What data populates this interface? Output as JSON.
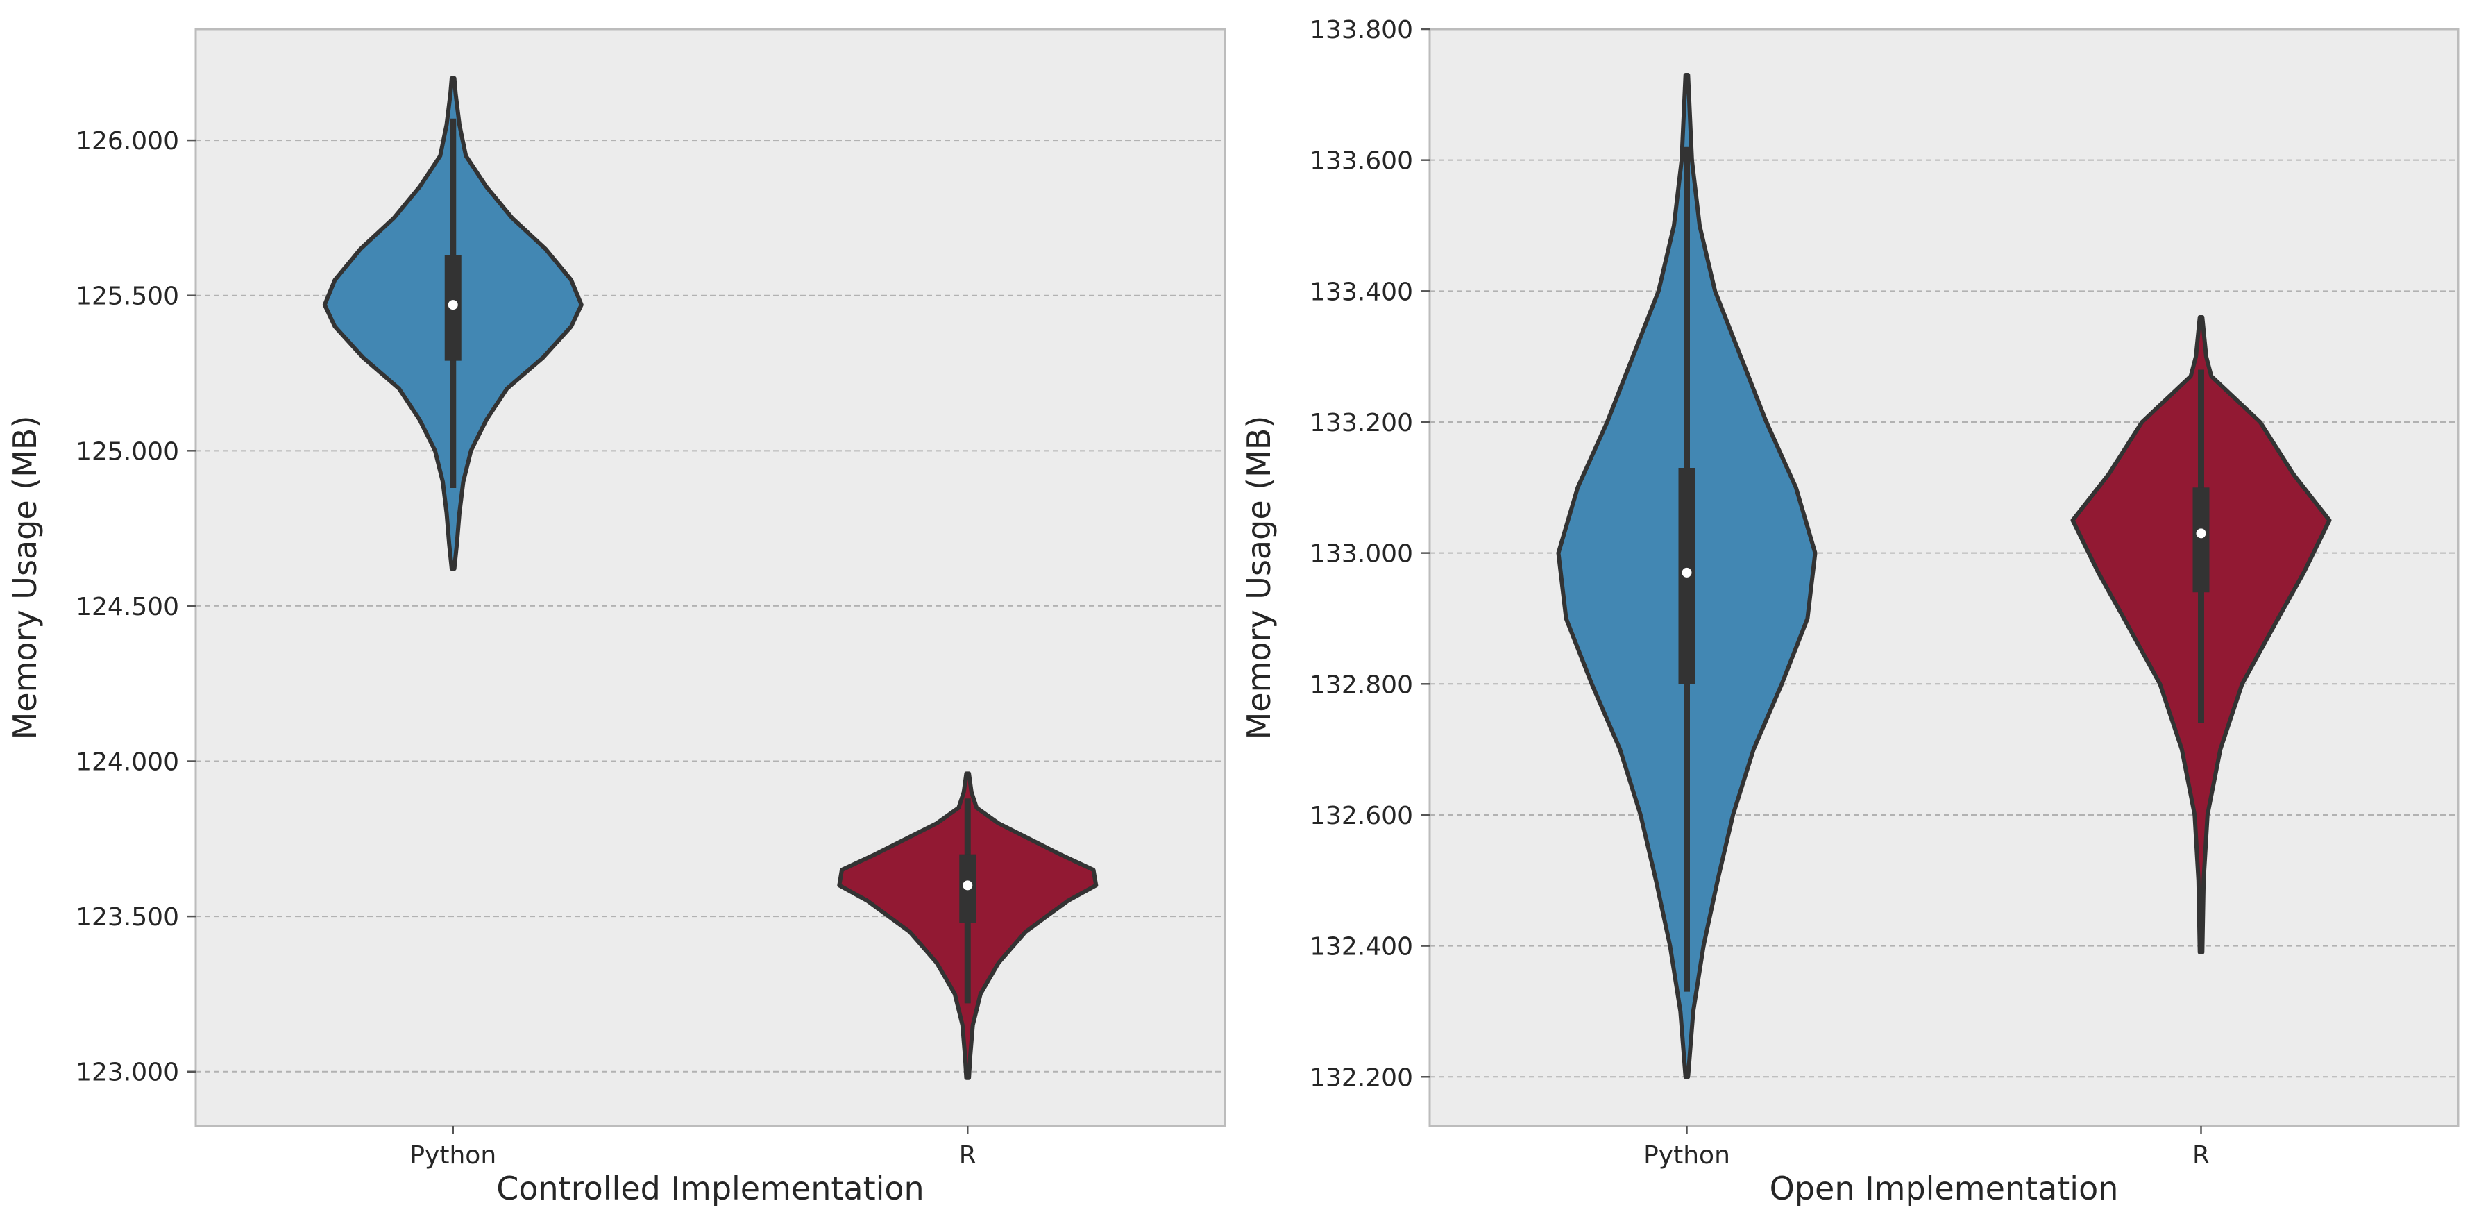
{
  "chart_data": [
    {
      "type": "violin",
      "xlabel": "Controlled Implementation",
      "ylabel": "Memory Usage (MB)",
      "ylim": [
        122.825,
        126.358
      ],
      "yticks": [
        123.0,
        123.5,
        124.0,
        124.5,
        125.0,
        125.5,
        126.0
      ],
      "ytick_labels": [
        "123.000",
        "123.500",
        "124.000",
        "124.500",
        "125.000",
        "125.500",
        "126.000"
      ],
      "categories": [
        "Python",
        "R"
      ],
      "grid": "horizontal dashed",
      "violins": [
        {
          "category": "Python",
          "color": "#4287b3",
          "min": 124.62,
          "max": 126.2,
          "q1": 125.29,
          "median": 125.47,
          "q3": 125.63,
          "whisker_low": 124.88,
          "whisker_high": 126.07,
          "density": [
            [
              124.62,
              0.01
            ],
            [
              124.7,
              0.03
            ],
            [
              124.8,
              0.05
            ],
            [
              124.9,
              0.08
            ],
            [
              125.0,
              0.14
            ],
            [
              125.1,
              0.26
            ],
            [
              125.2,
              0.42
            ],
            [
              125.3,
              0.7
            ],
            [
              125.4,
              0.92
            ],
            [
              125.47,
              1.0
            ],
            [
              125.55,
              0.92
            ],
            [
              125.65,
              0.72
            ],
            [
              125.75,
              0.46
            ],
            [
              125.85,
              0.26
            ],
            [
              125.95,
              0.1
            ],
            [
              126.05,
              0.05
            ],
            [
              126.15,
              0.02
            ],
            [
              126.2,
              0.01
            ]
          ]
        },
        {
          "category": "R",
          "color": "#921933",
          "min": 122.98,
          "max": 123.96,
          "q1": 123.48,
          "median": 123.6,
          "q3": 123.7,
          "whisker_low": 123.22,
          "whisker_high": 123.88,
          "density": [
            [
              122.98,
              0.01
            ],
            [
              123.05,
              0.02
            ],
            [
              123.15,
              0.04
            ],
            [
              123.25,
              0.1
            ],
            [
              123.35,
              0.24
            ],
            [
              123.45,
              0.45
            ],
            [
              123.55,
              0.78
            ],
            [
              123.6,
              1.0
            ],
            [
              123.65,
              0.98
            ],
            [
              123.7,
              0.72
            ],
            [
              123.75,
              0.48
            ],
            [
              123.8,
              0.24
            ],
            [
              123.85,
              0.07
            ],
            [
              123.9,
              0.03
            ],
            [
              123.96,
              0.01
            ]
          ]
        }
      ]
    },
    {
      "type": "violin",
      "xlabel": "Open Implementation",
      "ylabel": "Memory Usage (MB)",
      "ylim": [
        132.125,
        133.8
      ],
      "yticks": [
        132.2,
        132.4,
        132.6,
        132.8,
        133.0,
        133.2,
        133.4,
        133.6,
        133.8
      ],
      "ytick_labels": [
        "132.200",
        "132.400",
        "132.600",
        "132.800",
        "133.000",
        "133.200",
        "133.400",
        "133.600",
        "133.800"
      ],
      "categories": [
        "Python",
        "R"
      ],
      "grid": "horizontal dashed",
      "violins": [
        {
          "category": "Python",
          "color": "#4287b3",
          "min": 132.2,
          "max": 133.73,
          "q1": 132.8,
          "median": 132.97,
          "q3": 133.13,
          "whisker_low": 132.33,
          "whisker_high": 133.62,
          "density": [
            [
              132.2,
              0.01
            ],
            [
              132.3,
              0.05
            ],
            [
              132.4,
              0.13
            ],
            [
              132.5,
              0.24
            ],
            [
              132.6,
              0.36
            ],
            [
              132.7,
              0.52
            ],
            [
              132.8,
              0.74
            ],
            [
              132.9,
              0.94
            ],
            [
              133.0,
              1.0
            ],
            [
              133.1,
              0.85
            ],
            [
              133.2,
              0.62
            ],
            [
              133.3,
              0.42
            ],
            [
              133.4,
              0.22
            ],
            [
              133.5,
              0.1
            ],
            [
              133.6,
              0.04
            ],
            [
              133.73,
              0.01
            ]
          ]
        },
        {
          "category": "R",
          "color": "#921933",
          "min": 132.39,
          "max": 133.36,
          "q1": 132.94,
          "median": 133.03,
          "q3": 133.1,
          "whisker_low": 132.74,
          "whisker_high": 133.28,
          "density": [
            [
              132.39,
              0.01
            ],
            [
              132.5,
              0.02
            ],
            [
              132.6,
              0.05
            ],
            [
              132.7,
              0.15
            ],
            [
              132.8,
              0.32
            ],
            [
              132.9,
              0.6
            ],
            [
              132.97,
              0.8
            ],
            [
              133.05,
              1.0
            ],
            [
              133.12,
              0.72
            ],
            [
              133.2,
              0.46
            ],
            [
              133.27,
              0.08
            ],
            [
              133.3,
              0.04
            ],
            [
              133.36,
              0.01
            ]
          ]
        }
      ]
    }
  ]
}
